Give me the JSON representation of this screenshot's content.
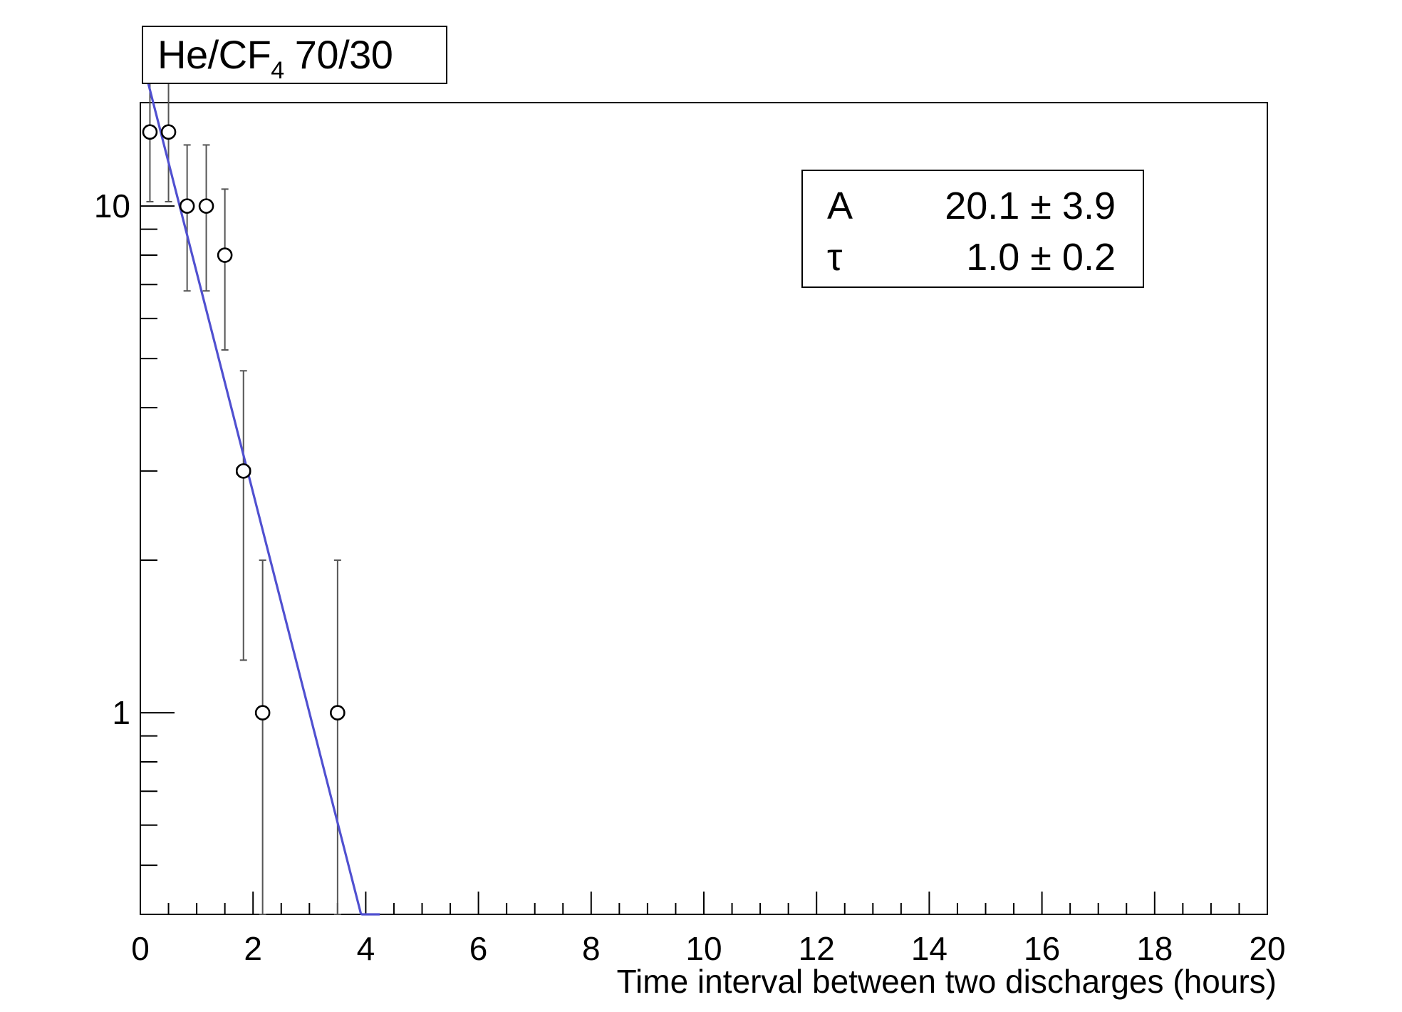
{
  "title": {
    "main": "He/CF",
    "subscript": "4",
    "suffix": " 70/30"
  },
  "stats": [
    {
      "name": "A",
      "value": "20.1 ± 3.9"
    },
    {
      "name": "τ",
      "value": "1.0 ± 0.2"
    }
  ],
  "colors": {
    "fit_line": "#5050d0",
    "error_bars": "#555555",
    "axes": "#000000"
  },
  "chart_data": {
    "type": "scatter",
    "title": "He/CF4 70/30",
    "xlabel": "Time interval between two discharges (hours)",
    "ylabel": "",
    "xlim": [
      0,
      20
    ],
    "ylim": [
      0.4,
      16
    ],
    "yscale": "log",
    "x_ticks": [
      0,
      2,
      4,
      6,
      8,
      10,
      12,
      14,
      16,
      18,
      20
    ],
    "x_tick_labels": [
      "0",
      "2",
      "4",
      "6",
      "8",
      "10",
      "12",
      "14",
      "16",
      "18",
      "20"
    ],
    "y_tick_labels": [
      {
        "value": 1,
        "label": "1"
      },
      {
        "value": 10,
        "label": "10"
      }
    ],
    "grid": false,
    "legend": "none",
    "points": [
      {
        "x": 0.17,
        "y": 14,
        "y_lo": 10.2,
        "y_hi": 17.8,
        "x_err": 0.08
      },
      {
        "x": 0.5,
        "y": 14,
        "y_lo": 10.2,
        "y_hi": 17.8,
        "x_err": 0.08
      },
      {
        "x": 0.83,
        "y": 10,
        "y_lo": 6.8,
        "y_hi": 13.2,
        "x_err": 0.08
      },
      {
        "x": 1.17,
        "y": 10,
        "y_lo": 6.8,
        "y_hi": 13.2,
        "x_err": 0.08
      },
      {
        "x": 1.5,
        "y": 8,
        "y_lo": 5.2,
        "y_hi": 10.8,
        "x_err": 0.1
      },
      {
        "x": 1.83,
        "y": 3,
        "y_lo": 1.27,
        "y_hi": 4.73,
        "x_err": 0.12
      },
      {
        "x": 2.17,
        "y": 1,
        "y_lo": 0.4,
        "y_hi": 2,
        "x_err": 0.1
      },
      {
        "x": 3.5,
        "y": 1,
        "y_lo": 0.4,
        "y_hi": 2,
        "x_err": 0.1
      }
    ],
    "fit": {
      "function": "A*exp(-x/tau)",
      "A": 20.1,
      "tau": 1.0,
      "x_range": [
        0.05,
        4.25
      ]
    }
  }
}
